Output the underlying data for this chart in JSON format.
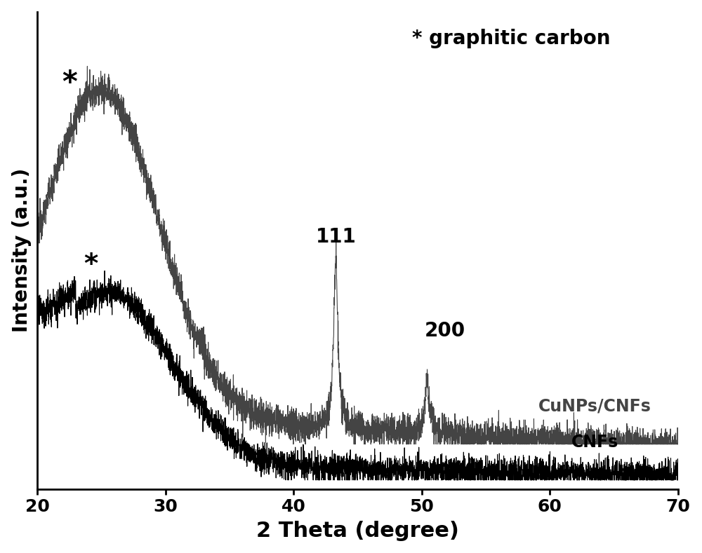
{
  "title": "",
  "xlabel": "2 Theta (degree)",
  "ylabel": "Intensity (a.u.)",
  "xlim": [
    20,
    70
  ],
  "ylim": [
    0.0,
    1.05
  ],
  "x_ticks": [
    20,
    30,
    40,
    50,
    60,
    70
  ],
  "background_color": "#ffffff",
  "annotation_star_label": "* graphitic carbon",
  "peak_111_label": "111",
  "peak_200_label": "200",
  "cunps_label": "CuNPs/CNFs",
  "cnfs_label": "CNFs",
  "cnfs_color": "#000000",
  "cunps_color": "#444444",
  "xlabel_fontsize": 22,
  "ylabel_fontsize": 20,
  "tick_fontsize": 18,
  "annotation_fontsize": 20,
  "label_fontsize": 17,
  "peak_label_fontsize": 20
}
